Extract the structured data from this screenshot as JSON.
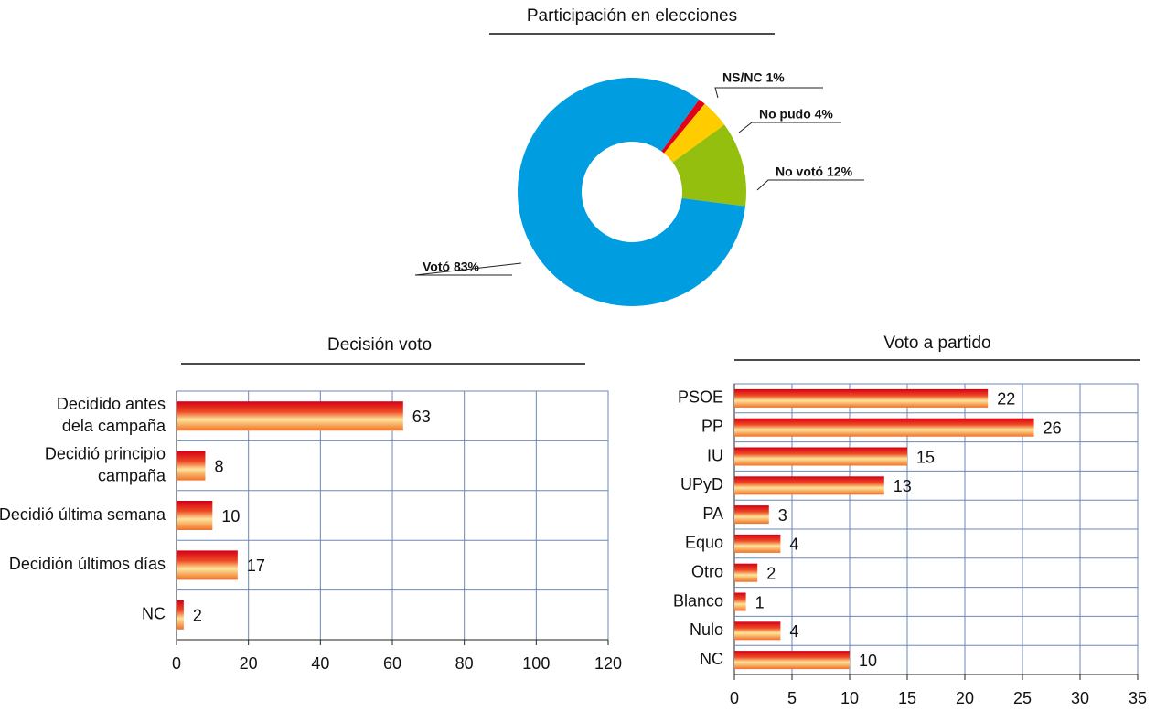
{
  "chart_data": [
    {
      "type": "pie",
      "title": "Participación en elecciones",
      "categories": [
        "NS/NC 1%",
        "No pudo 4%",
        "No votó 12%",
        "Votó 83%"
      ],
      "values": [
        1,
        4,
        12,
        83
      ],
      "colors": [
        "#e2001a",
        "#ffcc00",
        "#95bf0e",
        "#009ee0"
      ]
    },
    {
      "type": "bar",
      "title": "Decisión voto",
      "categories": [
        [
          "Decidido antes",
          "dela campaña"
        ],
        [
          "Decidió principio",
          "campaña"
        ],
        "Decidió última semana",
        "Decidión últimos días",
        "NC"
      ],
      "values": [
        63,
        8,
        10,
        17,
        2
      ],
      "xlim": [
        0,
        120
      ],
      "xticks": [
        0,
        20,
        40,
        60,
        80,
        100,
        120
      ],
      "grid": true
    },
    {
      "type": "bar",
      "title": "Voto a partido",
      "categories": [
        "PSOE",
        "PP",
        "IU",
        "UPyD",
        "PA",
        "Equo",
        "Otro",
        "Blanco",
        "Nulo",
        "NC"
      ],
      "values": [
        22,
        26,
        15,
        13,
        3,
        4,
        2,
        1,
        4,
        10
      ],
      "xlim": [
        0,
        35
      ],
      "xticks": [
        0,
        5,
        10,
        15,
        20,
        25,
        30,
        35
      ],
      "grid": true
    }
  ]
}
